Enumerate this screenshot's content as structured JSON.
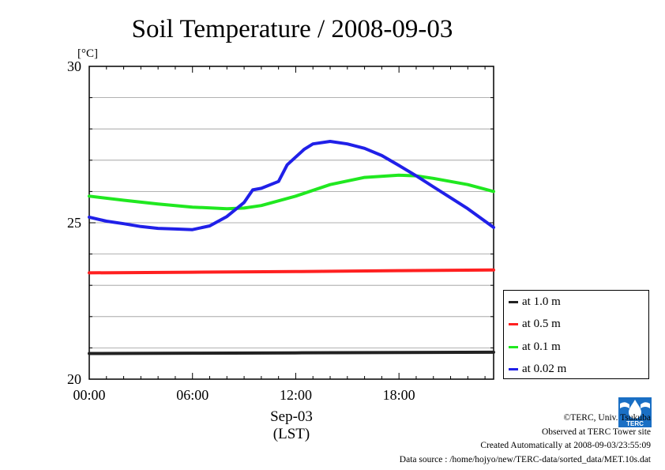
{
  "chart_data": {
    "type": "line",
    "title": "Soil Temperature / 2008-09-03",
    "ylabel": "[°C]",
    "xlabel_date": "Sep-03",
    "xlabel_unit": "(LST)",
    "ylim": [
      20,
      30
    ],
    "xlim": [
      0,
      23.5
    ],
    "y_ticks": [
      "20",
      "25",
      "30"
    ],
    "y_tick_values": [
      20,
      25,
      30
    ],
    "x_ticks": [
      "00:00",
      "06:00",
      "12:00",
      "18:00"
    ],
    "x_tick_values": [
      0,
      6,
      12,
      18
    ],
    "grid": "horizontal",
    "legend_position": "lower-right, outside plot",
    "series": [
      {
        "name": "at 1.0 m",
        "color": "#222222",
        "x": [
          0,
          6,
          12,
          18,
          23.5
        ],
        "y": [
          20.82,
          20.83,
          20.84,
          20.85,
          20.86
        ]
      },
      {
        "name": "at 0.5 m",
        "color": "#ff2020",
        "x": [
          0,
          6,
          12,
          18,
          23.5
        ],
        "y": [
          23.4,
          23.42,
          23.44,
          23.47,
          23.49
        ]
      },
      {
        "name": "at 0.1 m",
        "color": "#20e820",
        "x": [
          0,
          2,
          4,
          6,
          8,
          9,
          10,
          12,
          14,
          16,
          18,
          19,
          20,
          22,
          23.5
        ],
        "y": [
          25.85,
          25.72,
          25.6,
          25.5,
          25.45,
          25.47,
          25.55,
          25.85,
          26.22,
          26.45,
          26.52,
          26.5,
          26.42,
          26.22,
          26.0
        ]
      },
      {
        "name": "at 0.02 m",
        "color": "#2020e8",
        "x": [
          0,
          1,
          2,
          3,
          4,
          5,
          6,
          7,
          8,
          9,
          9.5,
          10,
          11,
          11.5,
          12,
          12.5,
          13,
          14,
          15,
          16,
          17,
          18,
          19,
          20,
          21,
          22,
          23,
          23.5
        ],
        "y": [
          25.18,
          25.05,
          24.97,
          24.88,
          24.82,
          24.8,
          24.78,
          24.9,
          25.2,
          25.65,
          26.05,
          26.1,
          26.32,
          26.85,
          27.1,
          27.35,
          27.52,
          27.6,
          27.52,
          27.38,
          27.15,
          26.83,
          26.5,
          26.15,
          25.8,
          25.45,
          25.05,
          24.85
        ]
      }
    ]
  },
  "footer": {
    "copyright": "©TERC, Univ. Tsukuba",
    "observed": "Observed at TERC Tower site",
    "created": "Created Automatically at 2008-09-03/23:55:09",
    "source": "Data source : /home/hojyo/new/TERC-data/sorted_data/MET.10s.dat"
  },
  "logo": {
    "icon": "terc-logo-icon",
    "text": "TERC",
    "color": "#1a6fc4"
  }
}
